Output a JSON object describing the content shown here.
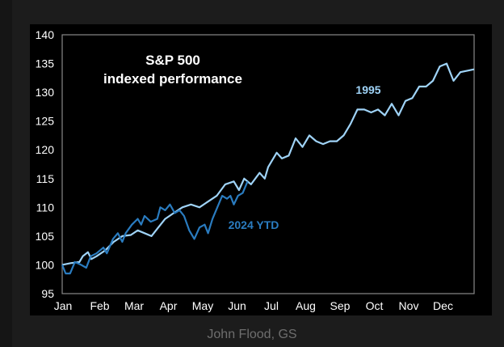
{
  "caption": "John Flood, GS",
  "colors": {
    "series_1995": "#9fd3f7",
    "series_2024": "#2a7cc0",
    "background": "#000000",
    "axis": "#888888"
  },
  "chart_data": {
    "type": "line",
    "title": "S&P 500",
    "subtitle": "indexed performance",
    "xlabel": "",
    "ylabel": "",
    "x_unit": "months elapsed since Jan 1",
    "xlim": [
      0,
      12
    ],
    "ylim": [
      95,
      140
    ],
    "y_ticks": [
      95,
      100,
      105,
      110,
      115,
      120,
      125,
      130,
      135,
      140
    ],
    "x_tick_labels": [
      "Jan",
      "Feb",
      "Mar",
      "Apr",
      "May",
      "Jun",
      "Jul",
      "Aug",
      "Sep",
      "Oct",
      "Nov",
      "Dec"
    ],
    "grid": false,
    "legend": "inline labels",
    "series": [
      {
        "name": "1995",
        "x": [
          0,
          0.25,
          0.5,
          0.6,
          0.75,
          0.85,
          1.0,
          1.25,
          1.5,
          1.75,
          2.0,
          2.2,
          2.4,
          2.6,
          2.8,
          3.0,
          3.25,
          3.5,
          3.75,
          4.0,
          4.25,
          4.5,
          4.75,
          5.0,
          5.15,
          5.3,
          5.5,
          5.75,
          5.9,
          6.0,
          6.25,
          6.4,
          6.6,
          6.8,
          7.0,
          7.2,
          7.4,
          7.6,
          7.8,
          8.0,
          8.2,
          8.4,
          8.6,
          8.8,
          9.0,
          9.2,
          9.4,
          9.6,
          9.8,
          10.0,
          10.2,
          10.4,
          10.6,
          10.8,
          11.0,
          11.2,
          11.4,
          11.6,
          12.0
        ],
        "y": [
          100,
          100.3,
          100.5,
          101.5,
          102.2,
          101,
          101.5,
          102.5,
          104,
          105,
          105.2,
          106,
          105.5,
          105,
          106.5,
          108,
          109,
          110,
          110.5,
          110,
          111,
          112,
          114,
          114.5,
          113,
          115,
          114,
          116,
          115,
          117,
          119.5,
          118.5,
          119,
          122,
          120.5,
          122.5,
          121.5,
          121,
          121.5,
          121.5,
          122.5,
          124.5,
          127,
          127,
          126.5,
          127,
          126,
          128,
          126,
          128.5,
          129,
          131,
          131,
          132,
          134.5,
          135,
          132,
          133.5,
          134
        ]
      },
      {
        "name": "2024 YTD",
        "x": [
          0,
          0.1,
          0.23,
          0.37,
          0.55,
          0.7,
          0.83,
          1.0,
          1.2,
          1.3,
          1.48,
          1.62,
          1.75,
          1.85,
          2.03,
          2.2,
          2.3,
          2.4,
          2.58,
          2.77,
          2.86,
          3.0,
          3.14,
          3.28,
          3.42,
          3.55,
          3.7,
          3.85,
          4.0,
          4.15,
          4.25,
          4.38,
          4.52,
          4.66,
          4.8,
          4.9,
          5.0,
          5.12,
          5.26,
          5.4
        ],
        "y": [
          100,
          98.5,
          98.5,
          100.5,
          100,
          99.5,
          101.5,
          102,
          103,
          102,
          104.5,
          105.5,
          104,
          105.5,
          107,
          108,
          107,
          108.5,
          107.5,
          108,
          110,
          109.5,
          110.5,
          109,
          109.5,
          108.5,
          106,
          104.5,
          106.5,
          107,
          105.5,
          108,
          110,
          112,
          111.5,
          112,
          110.5,
          112,
          112.5,
          114.5
        ]
      }
    ]
  }
}
